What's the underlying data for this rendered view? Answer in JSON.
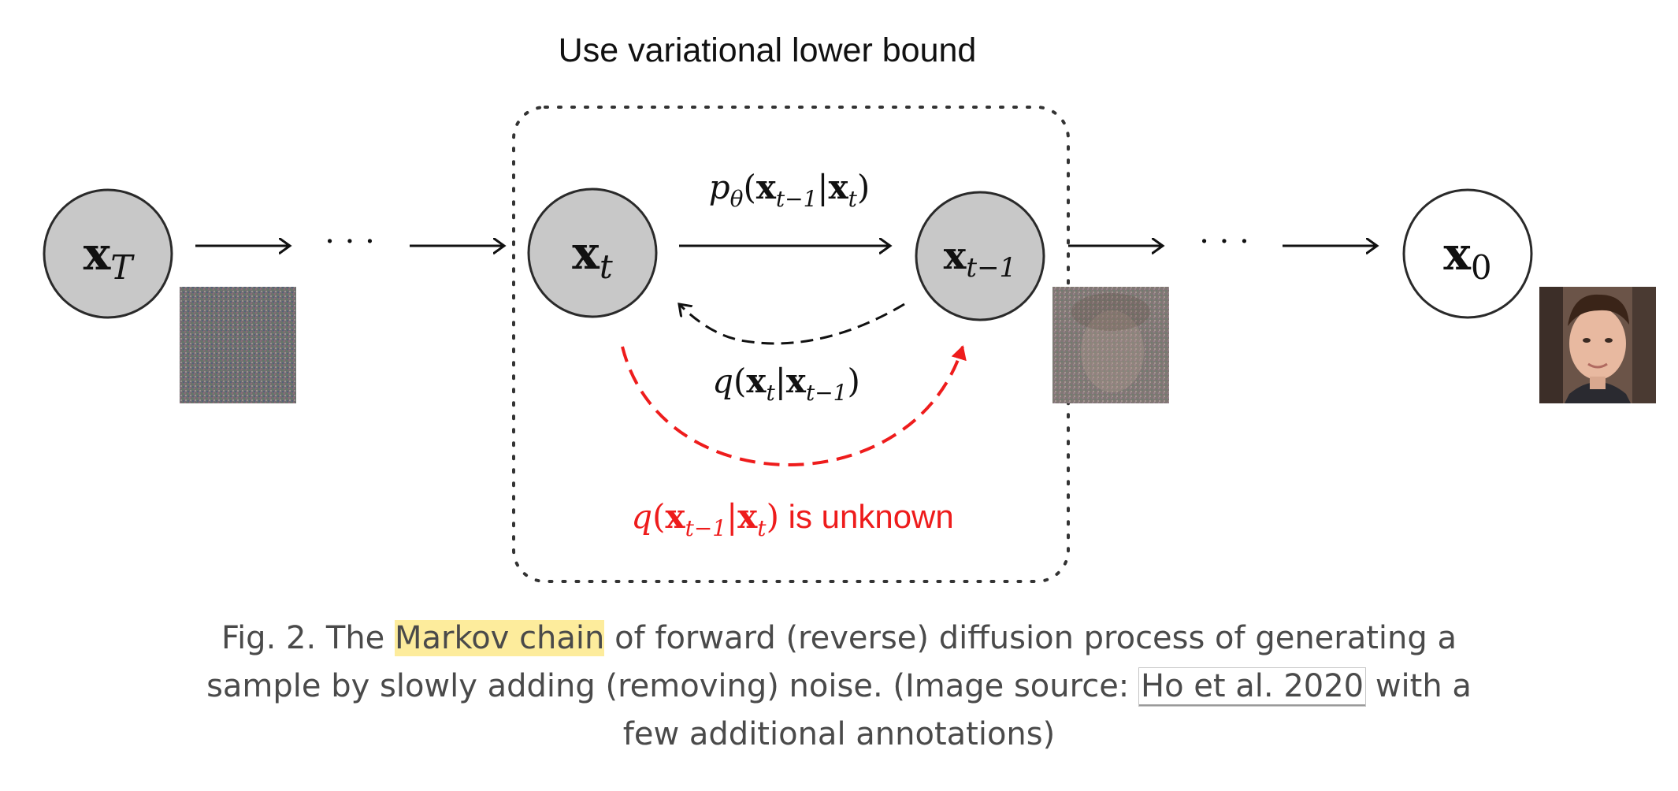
{
  "diagram": {
    "top_label": "Use variational lower bound",
    "nodes": {
      "xT": {
        "main": "x",
        "sub": "T"
      },
      "xt": {
        "main": "x",
        "sub": "t"
      },
      "xt1": {
        "main": "x",
        "sub": "t−1"
      },
      "x0": {
        "main": "x",
        "sub": "0"
      }
    },
    "ellipsis": "· · ·",
    "reverse_label": {
      "fn": "p",
      "fn_sub": "θ",
      "open": "(",
      "a": "x",
      "a_sub": "t−1",
      "bar": "|",
      "b": "x",
      "b_sub": "t",
      "close": ")"
    },
    "forward_label": {
      "fn": "q",
      "open": "(",
      "a": "x",
      "a_sub": "t",
      "bar": "|",
      "b": "x",
      "b_sub": "t−1",
      "close": ")"
    },
    "unknown_label": {
      "fn": "q",
      "open": "(",
      "a": "x",
      "a_sub": "t−1",
      "bar": "|",
      "b": "x",
      "b_sub": "t",
      "close": ")",
      "suffix": " is unknown"
    },
    "colors": {
      "node_fill": "#c8c8c8",
      "node_stroke": "#2a2a2a",
      "red": "#ee1c1c",
      "box": "#333333"
    }
  },
  "caption": {
    "before": "Fig. 2. The ",
    "highlight": "Markov chain",
    "middle": " of forward (reverse) diffusion process of generating a sample by slowly adding (removing) noise. (Image source: ",
    "link": "Ho et al. 2020",
    "after": " with a few additional annotations)"
  }
}
